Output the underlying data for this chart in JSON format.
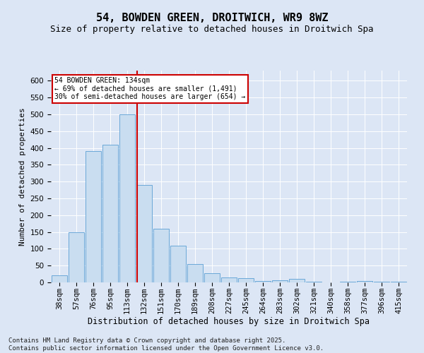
{
  "title1": "54, BOWDEN GREEN, DROITWICH, WR9 8WZ",
  "title2": "Size of property relative to detached houses in Droitwich Spa",
  "xlabel": "Distribution of detached houses by size in Droitwich Spa",
  "ylabel": "Number of detached properties",
  "bar_labels": [
    "38sqm",
    "57sqm",
    "76sqm",
    "95sqm",
    "113sqm",
    "132sqm",
    "151sqm",
    "170sqm",
    "189sqm",
    "208sqm",
    "227sqm",
    "245sqm",
    "264sqm",
    "283sqm",
    "302sqm",
    "321sqm",
    "340sqm",
    "358sqm",
    "377sqm",
    "396sqm",
    "415sqm"
  ],
  "bar_values": [
    20,
    150,
    390,
    410,
    500,
    290,
    160,
    110,
    55,
    28,
    15,
    13,
    5,
    7,
    10,
    3,
    0,
    3,
    5,
    2,
    3
  ],
  "bar_color": "#c9ddf0",
  "bar_edge_color": "#5a9fd4",
  "vline_color": "#cc0000",
  "annotation_text": "54 BOWDEN GREEN: 134sqm\n← 69% of detached houses are smaller (1,491)\n30% of semi-detached houses are larger (654) →",
  "annotation_box_color": "#ffffff",
  "annotation_border_color": "#cc0000",
  "ylim": [
    0,
    630
  ],
  "yticks": [
    0,
    50,
    100,
    150,
    200,
    250,
    300,
    350,
    400,
    450,
    500,
    550,
    600
  ],
  "bg_color": "#dce6f5",
  "plot_bg_color": "#dce6f5",
  "footer": "Contains HM Land Registry data © Crown copyright and database right 2025.\nContains public sector information licensed under the Open Government Licence v3.0.",
  "title1_fontsize": 11,
  "title2_fontsize": 9,
  "xlabel_fontsize": 8.5,
  "ylabel_fontsize": 8,
  "tick_fontsize": 7.5,
  "footer_fontsize": 6.5
}
